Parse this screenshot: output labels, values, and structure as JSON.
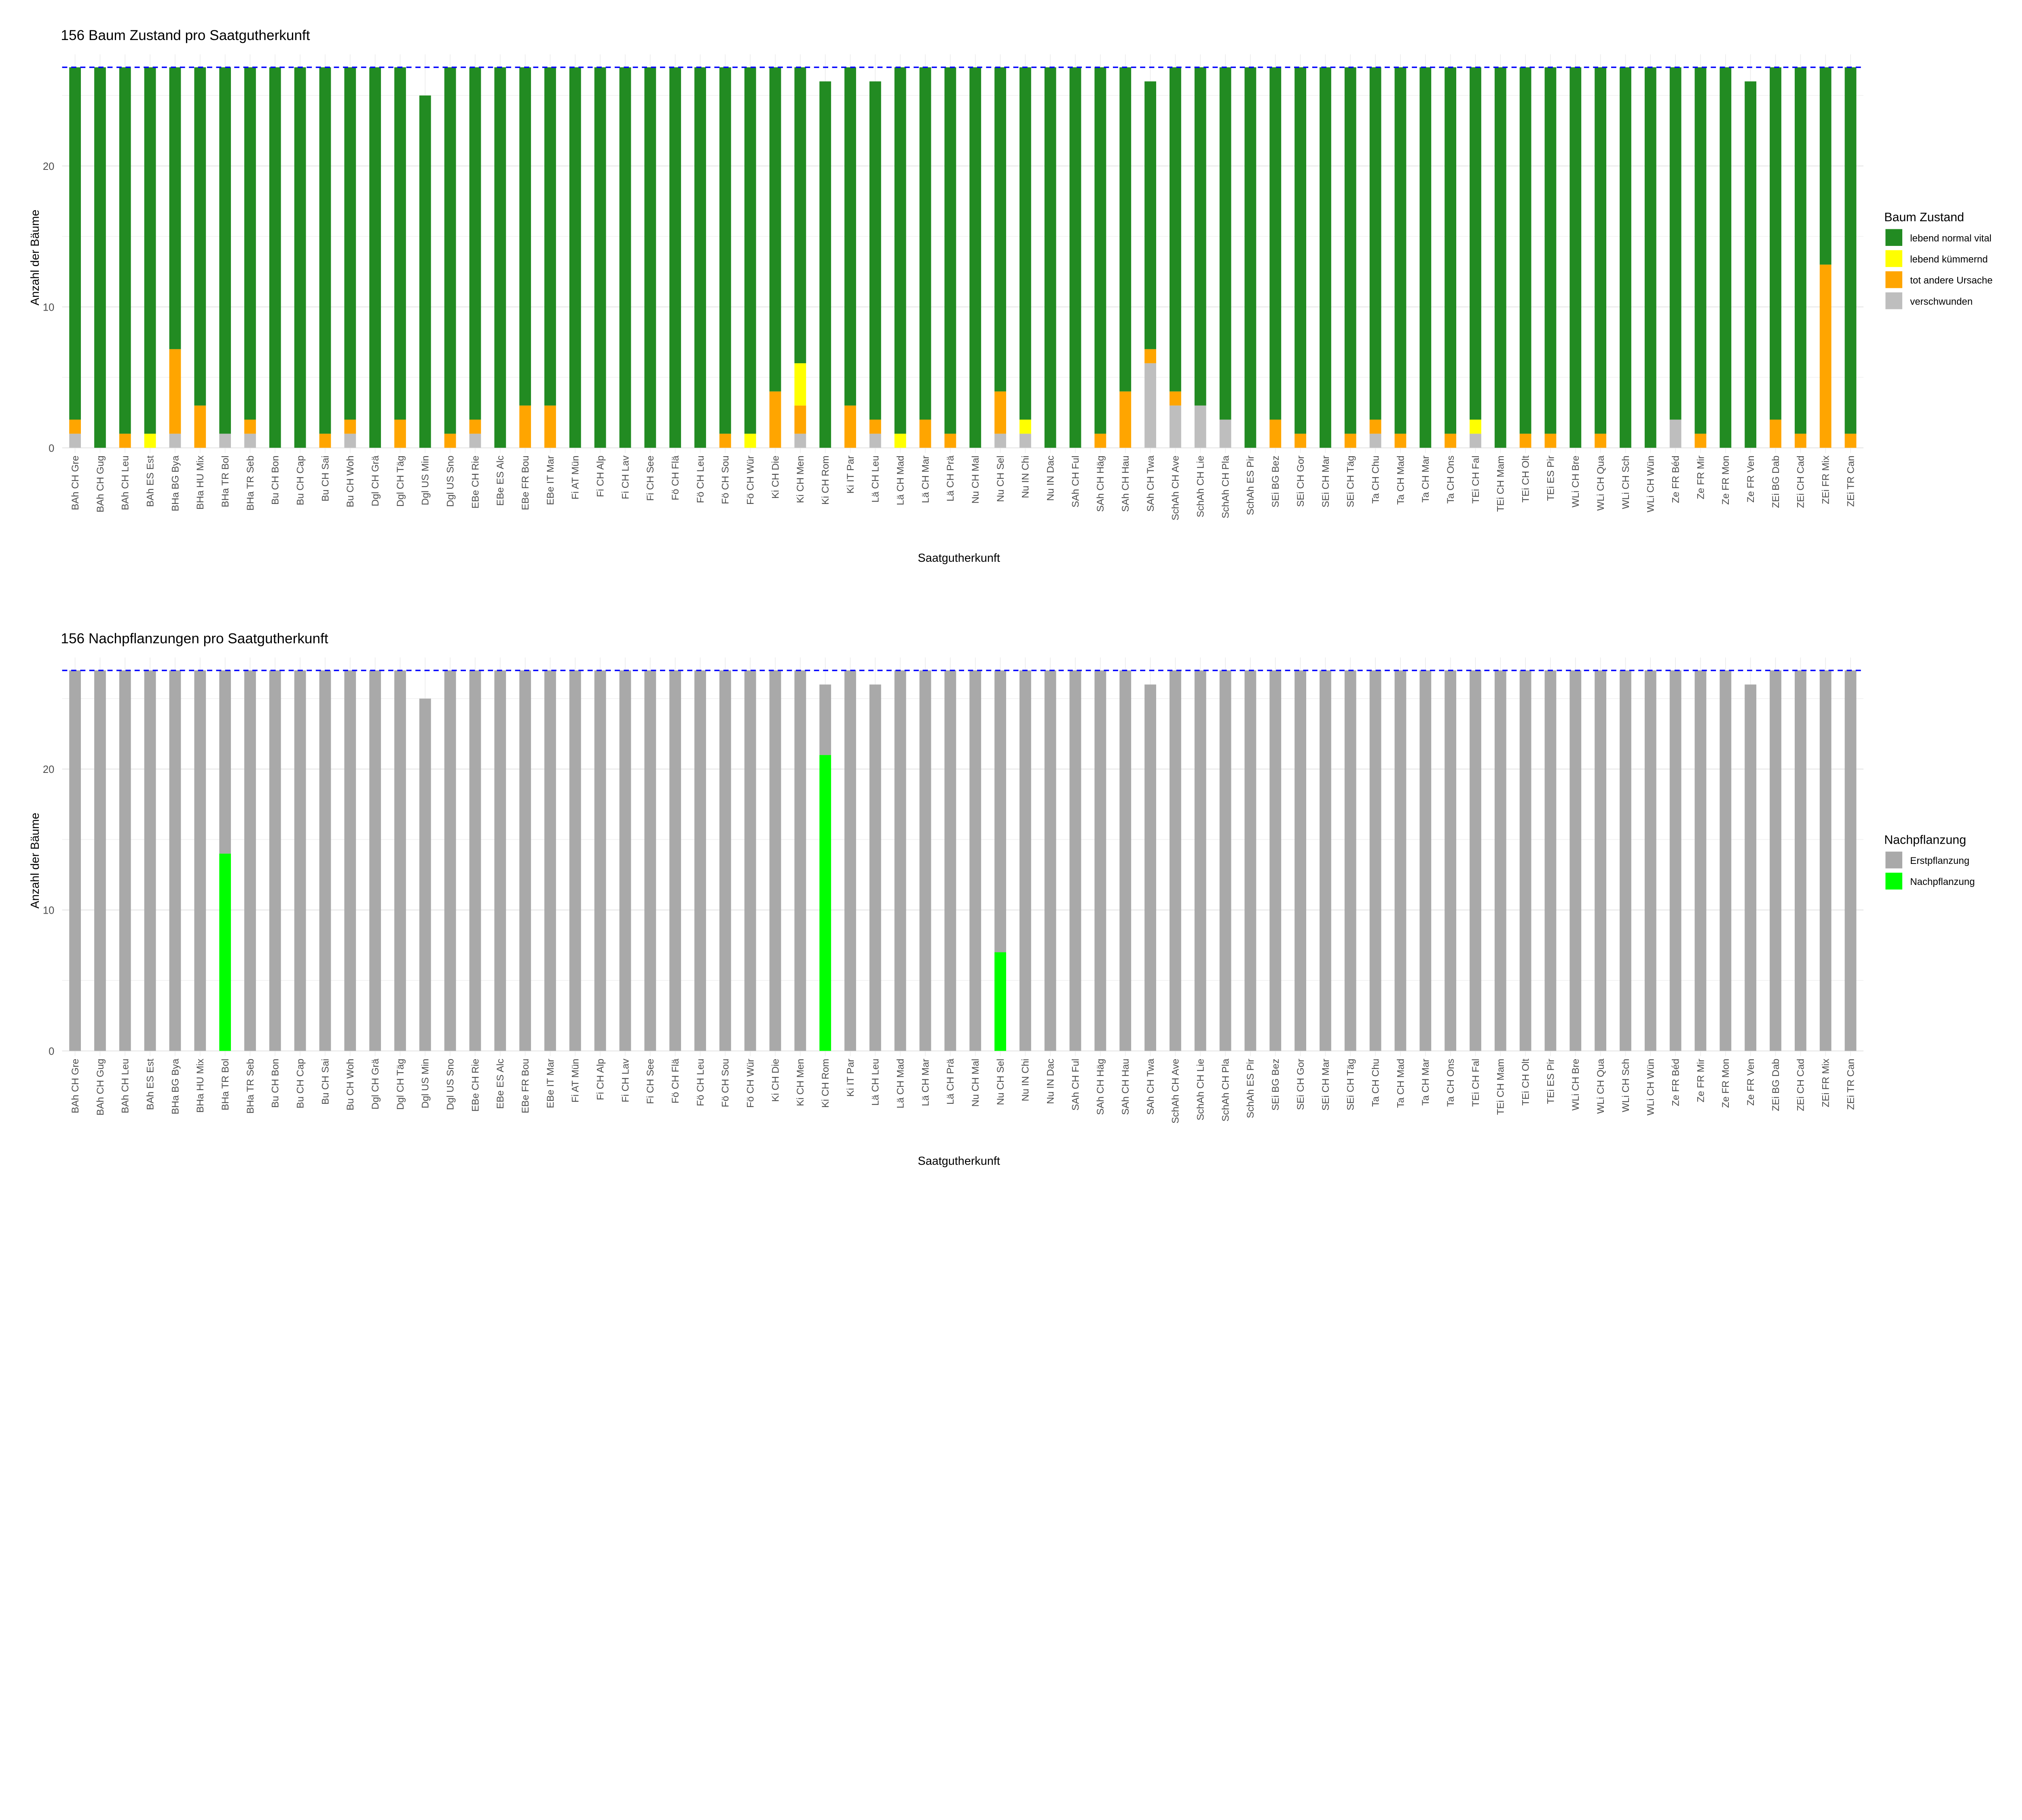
{
  "chart_data": [
    {
      "type": "bar",
      "stacked": true,
      "title": "156 Baum Zustand pro Saatgutherkunft",
      "xlabel": "Saatgutherkunft",
      "ylabel": "Anzahl der Bäume",
      "ylim": [
        0,
        27.5
      ],
      "yticks": [
        0,
        10,
        20
      ],
      "reference_line": {
        "value": 27,
        "style": "dashed",
        "color": "#0000FF"
      },
      "grid": true,
      "legend": {
        "title": "Baum Zustand",
        "placement": "right"
      },
      "categories": [
        "BAh CH Gre",
        "BAh CH Gug",
        "BAh CH Leu",
        "BAh ES Est",
        "BHa BG Bya",
        "BHa HU Mix",
        "BHa TR Bol",
        "BHa TR Seb",
        "Bu CH Bon",
        "Bu CH Cap",
        "Bu CH Sai",
        "Bu CH Woh",
        "Dgl CH Grä",
        "Dgl CH Täg",
        "Dgl US Min",
        "Dgl US Sno",
        "EBe CH Rie",
        "EBe ES Alc",
        "EBe FR Bou",
        "EBe IT Mar",
        "Fi AT Mün",
        "Fi CH Alp",
        "Fi CH Lav",
        "Fi CH See",
        "Fö CH Flä",
        "Fö CH Leu",
        "Fö CH Sou",
        "Fö CH Wür",
        "Ki CH Die",
        "Ki CH Men",
        "Ki CH Rom",
        "Ki IT Par",
        "Lä CH Leu",
        "Lä CH Mad",
        "Lä CH Mar",
        "Lä CH Prä",
        "Nu CH Mal",
        "Nu CH Sel",
        "Nu IN Chi",
        "Nu IN Dac",
        "SAh CH Ful",
        "SAh CH Häg",
        "SAh CH Hau",
        "SAh CH Twa",
        "SchAh CH Ave",
        "SchAh CH Lie",
        "SchAh CH Pla",
        "SchAh ES Pir",
        "SEi BG Bez",
        "SEi CH Gor",
        "SEi CH Mar",
        "SEi CH Täg",
        "Ta CH Chu",
        "Ta CH Mad",
        "Ta CH Mar",
        "Ta CH Ons",
        "TEi CH Fal",
        "TEi CH Mam",
        "TEi CH Olt",
        "TEi ES Pir",
        "WLi CH Bre",
        "WLi CH Qua",
        "WLi CH Sch",
        "WLi CH Wün",
        "Ze FR Béd",
        "Ze FR Mir",
        "Ze FR Mon",
        "Ze FR Ven",
        "ZEi BG Dab",
        "ZEi CH Cad",
        "ZEi FR Mix",
        "ZEi TR Can"
      ],
      "series": [
        {
          "name": "verschwunden",
          "color": "#BEBEBE",
          "values": [
            1,
            0,
            0,
            0,
            1,
            0,
            1,
            1,
            0,
            0,
            0,
            1,
            0,
            0,
            0,
            0,
            1,
            0,
            0,
            0,
            0,
            0,
            0,
            0,
            0,
            0,
            0,
            0,
            0,
            1,
            0,
            0,
            1,
            0,
            0,
            0,
            0,
            1,
            1,
            0,
            0,
            0,
            0,
            6,
            3,
            3,
            2,
            0,
            0,
            0,
            0,
            0,
            1,
            0,
            0,
            0,
            1,
            0,
            0,
            0,
            0,
            0,
            0,
            0,
            2,
            0,
            0,
            0,
            0,
            0,
            0,
            0
          ]
        },
        {
          "name": "tot andere Ursache",
          "color": "#FFA500",
          "values": [
            1,
            0,
            1,
            0,
            6,
            3,
            0,
            1,
            0,
            0,
            1,
            1,
            0,
            2,
            0,
            1,
            1,
            0,
            3,
            3,
            0,
            0,
            0,
            0,
            0,
            0,
            1,
            0,
            4,
            2,
            0,
            3,
            1,
            0,
            2,
            1,
            0,
            3,
            0,
            0,
            0,
            1,
            4,
            1,
            1,
            0,
            0,
            0,
            2,
            1,
            0,
            1,
            1,
            1,
            0,
            1,
            0,
            0,
            1,
            1,
            0,
            1,
            0,
            0,
            0,
            1,
            0,
            0,
            2,
            1,
            13,
            1
          ]
        },
        {
          "name": "lebend kümmernd",
          "color": "#FFFF00",
          "values": [
            0,
            0,
            0,
            1,
            0,
            0,
            0,
            0,
            0,
            0,
            0,
            0,
            0,
            0,
            0,
            0,
            0,
            0,
            0,
            0,
            0,
            0,
            0,
            0,
            0,
            0,
            0,
            1,
            0,
            3,
            0,
            0,
            0,
            1,
            0,
            0,
            0,
            0,
            1,
            0,
            0,
            0,
            0,
            0,
            0,
            0,
            0,
            0,
            0,
            0,
            0,
            0,
            0,
            0,
            0,
            0,
            1,
            0,
            0,
            0,
            0,
            0,
            0,
            0,
            0,
            0,
            0,
            0,
            0,
            0,
            0,
            0
          ]
        },
        {
          "name": "lebend normal vital",
          "color": "#228B22",
          "values": [
            25,
            27,
            26,
            26,
            20,
            24,
            26,
            25,
            27,
            27,
            26,
            25,
            27,
            25,
            25,
            26,
            25,
            27,
            24,
            24,
            27,
            27,
            27,
            27,
            27,
            27,
            26,
            26,
            23,
            21,
            26,
            24,
            24,
            26,
            25,
            26,
            27,
            23,
            25,
            27,
            27,
            26,
            23,
            19,
            23,
            24,
            25,
            27,
            25,
            26,
            27,
            26,
            25,
            26,
            27,
            26,
            25,
            27,
            26,
            26,
            27,
            26,
            27,
            27,
            25,
            26,
            27,
            26,
            25,
            26,
            14,
            26
          ]
        }
      ],
      "legend_order": [
        "lebend normal vital",
        "lebend kümmernd",
        "tot andere Ursache",
        "verschwunden"
      ]
    },
    {
      "type": "bar",
      "stacked": true,
      "title": "156 Nachpflanzungen pro Saatgutherkunft",
      "xlabel": "Saatgutherkunft",
      "ylabel": "Anzahl der Bäume",
      "ylim": [
        0,
        27.5
      ],
      "yticks": [
        0,
        10,
        20
      ],
      "reference_line": {
        "value": 27,
        "style": "dashed",
        "color": "#0000FF"
      },
      "grid": true,
      "legend": {
        "title": "Nachpflanzung",
        "placement": "right"
      },
      "categories_ref": 0,
      "series": [
        {
          "name": "Nachpflanzung",
          "color": "#00FF00",
          "values": [
            0,
            0,
            0,
            0,
            0,
            0,
            14,
            0,
            0,
            0,
            0,
            0,
            0,
            0,
            0,
            0,
            0,
            0,
            0,
            0,
            0,
            0,
            0,
            0,
            0,
            0,
            0,
            0,
            0,
            0,
            21,
            0,
            0,
            0,
            0,
            0,
            0,
            7,
            0,
            0,
            0,
            0,
            0,
            0,
            0,
            0,
            0,
            0,
            0,
            0,
            0,
            0,
            0,
            0,
            0,
            0,
            0,
            0,
            0,
            0,
            0,
            0,
            0,
            0,
            0,
            0,
            0,
            0,
            0,
            0,
            0,
            0
          ]
        },
        {
          "name": "Erstpflanzung",
          "color": "#A9A9A9",
          "values": [
            27,
            27,
            27,
            27,
            27,
            27,
            13,
            27,
            27,
            27,
            27,
            27,
            27,
            27,
            25,
            27,
            27,
            27,
            27,
            27,
            27,
            27,
            27,
            27,
            27,
            27,
            27,
            27,
            27,
            27,
            5,
            27,
            26,
            27,
            27,
            27,
            27,
            20,
            27,
            27,
            27,
            27,
            27,
            26,
            27,
            27,
            27,
            27,
            27,
            27,
            27,
            27,
            27,
            27,
            27,
            27,
            27,
            27,
            27,
            27,
            27,
            27,
            27,
            27,
            27,
            27,
            27,
            26,
            27,
            27,
            27,
            27
          ]
        }
      ],
      "legend_order": [
        "Erstpflanzung",
        "Nachpflanzung"
      ]
    }
  ]
}
